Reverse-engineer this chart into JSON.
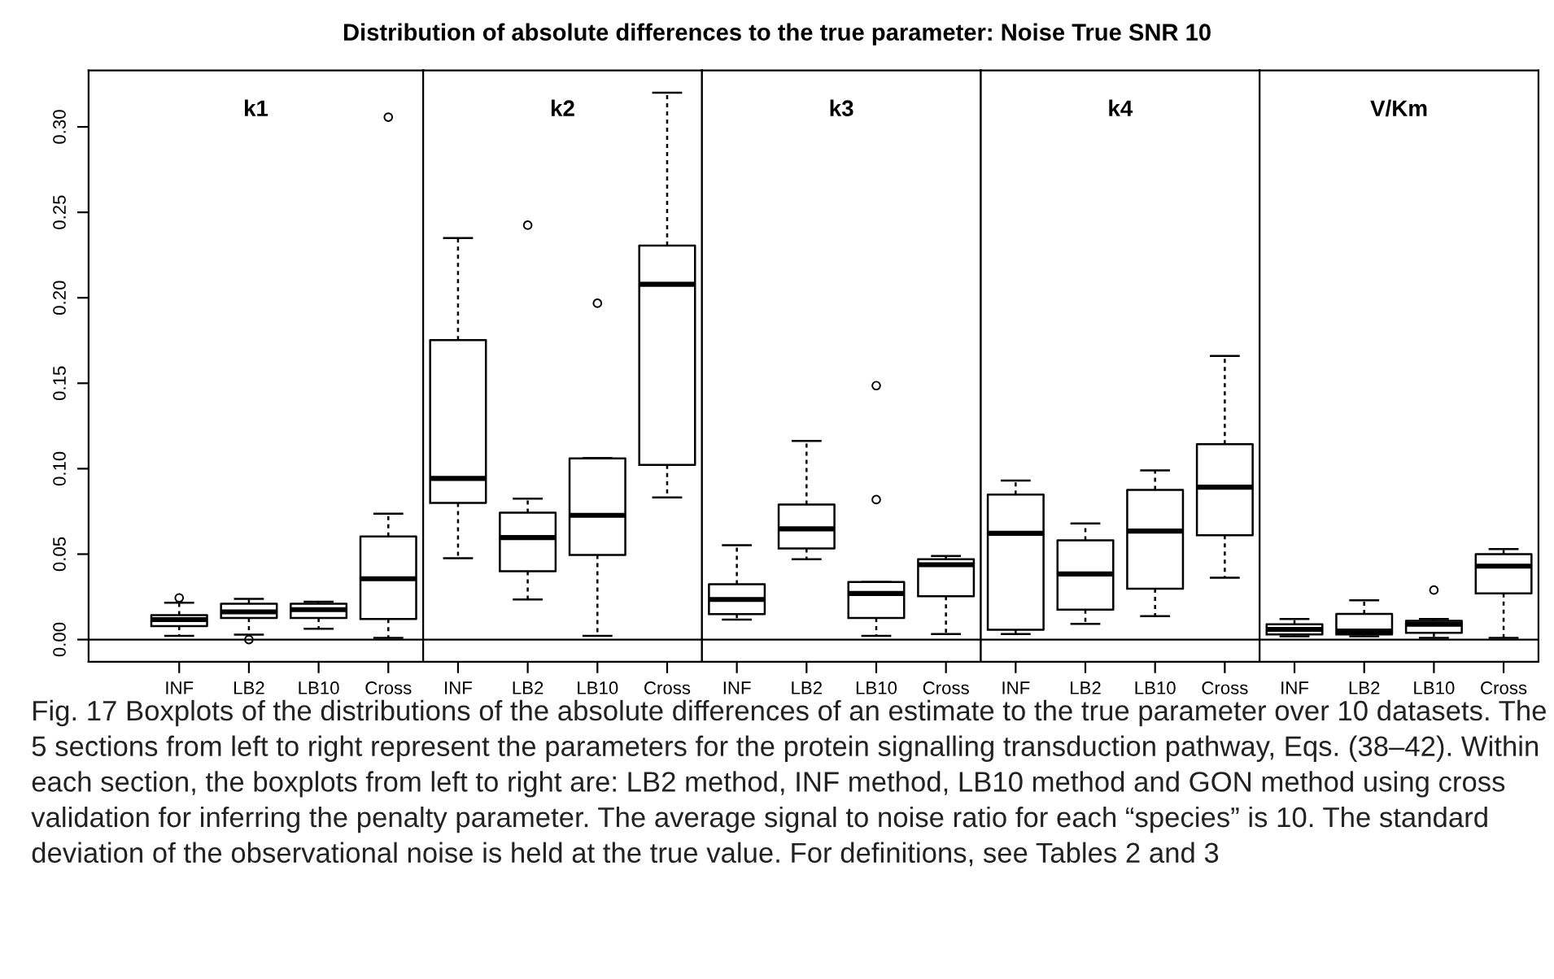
{
  "chart_data": [
    {
      "type": "box",
      "title": "k1",
      "categories": [
        "INF",
        "LB2",
        "LB10",
        "Cross"
      ],
      "boxes": [
        {
          "low": 0.0022,
          "q1": 0.0079,
          "median": 0.0117,
          "q3": 0.0143,
          "high": 0.0216,
          "outliers": [
            0.0244
          ]
        },
        {
          "low": 0.0029,
          "q1": 0.0127,
          "median": 0.0162,
          "q3": 0.021,
          "high": 0.0238,
          "outliers": [
            0.0
          ]
        },
        {
          "low": 0.0063,
          "q1": 0.0127,
          "median": 0.0175,
          "q3": 0.021,
          "high": 0.0222
        },
        {
          "low": 0.001,
          "q1": 0.0121,
          "median": 0.0356,
          "q3": 0.0603,
          "high": 0.0737,
          "outliers": [
            0.3057
          ]
        }
      ],
      "ylim": [
        -0.013,
        0.333
      ],
      "yticks": [
        {
          "value": 0,
          "label": "0.00"
        },
        {
          "value": 0.05,
          "label": "0.05"
        },
        {
          "value": 0.1,
          "label": "0.10"
        },
        {
          "value": 0.15,
          "label": "0.15"
        },
        {
          "value": 0.2,
          "label": "0.20"
        },
        {
          "value": 0.25,
          "label": "0.25"
        },
        {
          "value": 0.3,
          "label": "0.30"
        }
      ],
      "ref_lines": [
        {
          "axis": "y",
          "value": 0
        }
      ],
      "annotations": [
        "Distribution of absolute differences to the true parameter: Noise True SNR 10",
        "Fig. 17 Boxplots of the distributions of the absolute differences of an estimate to the true parameter over 10 datasets. The 5 sections from left to right represent the parameters for the protein signalling transduction pathway, Eqs. (38–42). Within each section, the boxplots from left to right are: LB2 method, INF method, LB10 method and GON method using cross validation for inferring the penalty parameter. The average signal to noise ratio for each “species” is 10. The standard deviation of the observational noise is held at the true value. For definitions, see Tables 2 and 3"
      ]
    },
    {
      "type": "box",
      "title": "k2",
      "categories": [
        "INF",
        "LB2",
        "LB10",
        "Cross"
      ],
      "boxes": [
        {
          "low": 0.0476,
          "q1": 0.08,
          "median": 0.0943,
          "q3": 0.1752,
          "high": 0.235
        },
        {
          "low": 0.0235,
          "q1": 0.04,
          "median": 0.0597,
          "q3": 0.0743,
          "high": 0.0825,
          "outliers": [
            0.2425
          ]
        },
        {
          "low": 0.0022,
          "q1": 0.0495,
          "median": 0.0727,
          "q3": 0.106,
          "high": 0.1063,
          "outliers": [
            0.1968
          ]
        },
        {
          "low": 0.0832,
          "q1": 0.1022,
          "median": 0.2079,
          "q3": 0.2305,
          "high": 0.32
        }
      ],
      "ylim": [
        -0.013,
        0.333
      ],
      "ref_lines": [
        {
          "axis": "y",
          "value": 0
        }
      ],
      "tick_labels": "x"
    },
    {
      "type": "box",
      "title": "k3",
      "categories": [
        "INF",
        "LB2",
        "LB10",
        "Cross"
      ],
      "boxes": [
        {
          "low": 0.0117,
          "q1": 0.0149,
          "median": 0.0235,
          "q3": 0.0324,
          "high": 0.0552
        },
        {
          "low": 0.047,
          "q1": 0.0533,
          "median": 0.0648,
          "q3": 0.079,
          "high": 0.1162
        },
        {
          "low": 0.0022,
          "q1": 0.0127,
          "median": 0.027,
          "q3": 0.0337,
          "high": 0.0337,
          "outliers": [
            0.1486,
            0.0819
          ]
        },
        {
          "low": 0.0032,
          "q1": 0.0254,
          "median": 0.0438,
          "q3": 0.047,
          "high": 0.0489
        }
      ],
      "ylim": [
        -0.013,
        0.333
      ],
      "ref_lines": [
        {
          "axis": "y",
          "value": 0
        }
      ],
      "tick_labels": "x"
    },
    {
      "type": "box",
      "title": "k4",
      "categories": [
        "INF",
        "LB2",
        "LB10",
        "Cross"
      ],
      "boxes": [
        {
          "low": 0.0032,
          "q1": 0.0057,
          "median": 0.0622,
          "q3": 0.0848,
          "high": 0.093
        },
        {
          "low": 0.0092,
          "q1": 0.0175,
          "median": 0.0384,
          "q3": 0.0581,
          "high": 0.0679
        },
        {
          "low": 0.0137,
          "q1": 0.0298,
          "median": 0.0635,
          "q3": 0.0876,
          "high": 0.099
        },
        {
          "low": 0.0362,
          "q1": 0.061,
          "median": 0.0892,
          "q3": 0.1143,
          "high": 0.166
        }
      ],
      "ylim": [
        -0.013,
        0.333
      ],
      "ref_lines": [
        {
          "axis": "y",
          "value": 0
        }
      ],
      "tick_labels": "x"
    },
    {
      "type": "box",
      "title": "V/Km",
      "categories": [
        "INF",
        "LB2",
        "LB10",
        "Cross"
      ],
      "boxes": [
        {
          "low": 0.002,
          "q1": 0.003,
          "median": 0.006,
          "q3": 0.009,
          "high": 0.012
        },
        {
          "low": 0.002,
          "q1": 0.003,
          "median": 0.005,
          "q3": 0.015,
          "high": 0.023
        },
        {
          "low": 0.001,
          "q1": 0.004,
          "median": 0.009,
          "q3": 0.011,
          "high": 0.012,
          "outliers": [
            0.029
          ]
        },
        {
          "low": 0.001,
          "q1": 0.027,
          "median": 0.043,
          "q3": 0.05,
          "high": 0.053
        }
      ],
      "ylim": [
        -0.013,
        0.333
      ],
      "ref_lines": [
        {
          "axis": "y",
          "value": 0
        }
      ],
      "tick_labels": "x"
    }
  ]
}
